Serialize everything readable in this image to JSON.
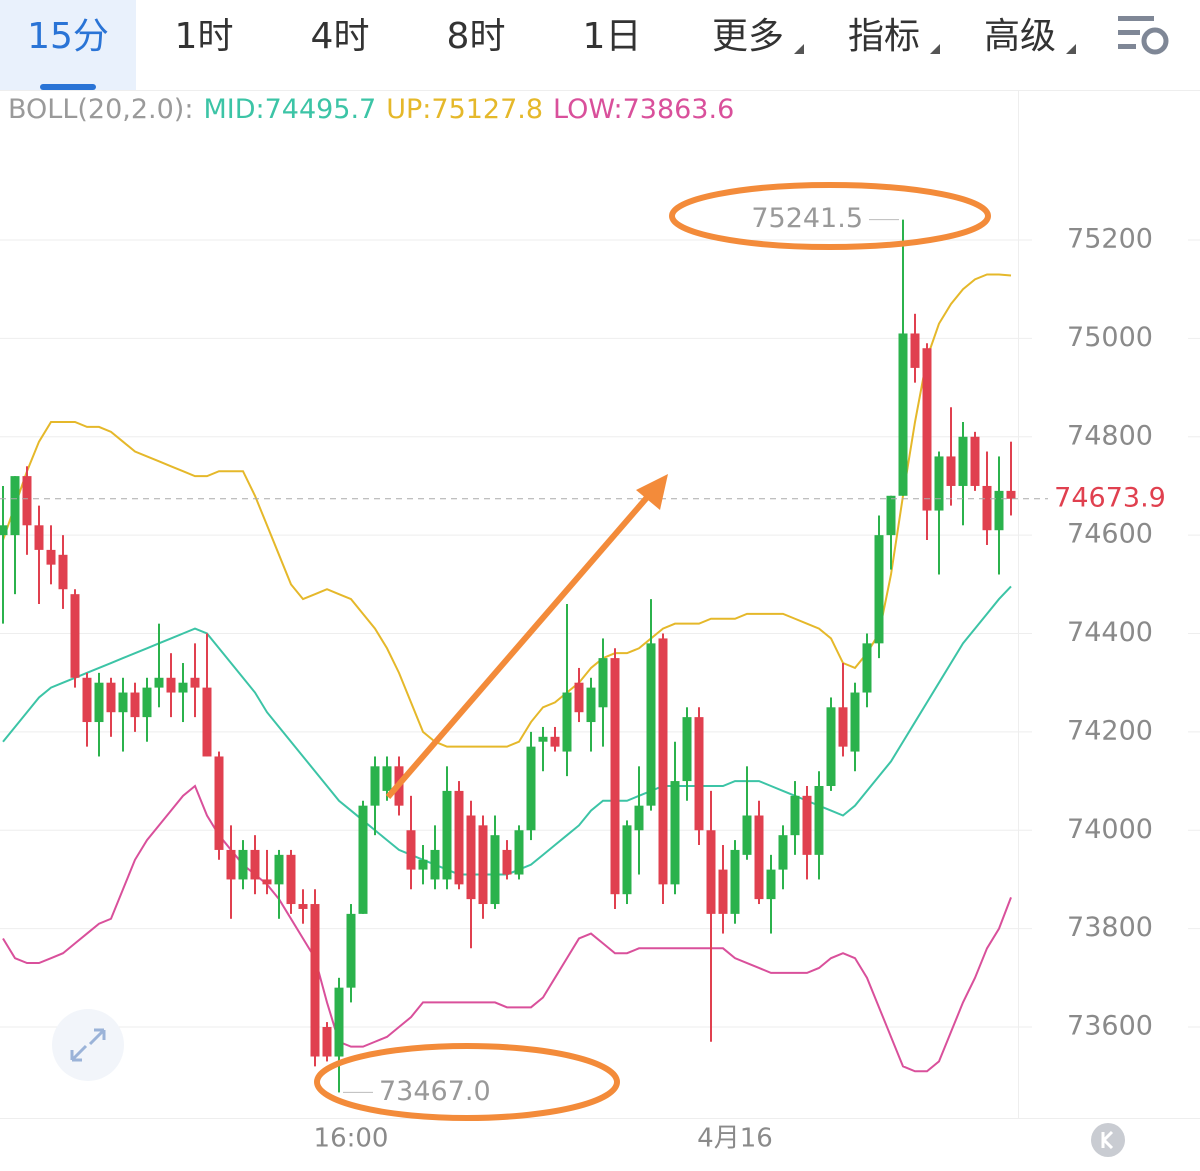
{
  "tabs": [
    "15分",
    "1时",
    "4时",
    "8时",
    "1日",
    "更多",
    "指标",
    "高级"
  ],
  "indicator": {
    "label": "BOLL(20,2.0):"
  },
  "chart_data": {
    "type": "candlestick",
    "up_color": "#2bb24c",
    "down_color": "#e0404f",
    "ylim": [
      73415,
      75505
    ],
    "yticks": [
      73600,
      73800,
      74000,
      74200,
      74400,
      74600,
      74800,
      75000,
      75200
    ],
    "grid": true,
    "low_label": "73467.0",
    "categories": [
      null,
      null,
      null,
      null,
      null,
      null,
      null,
      null,
      null,
      null,
      null,
      null,
      null,
      null,
      null,
      null,
      null,
      null,
      null,
      null,
      null,
      null,
      null,
      null,
      null,
      null,
      null,
      null,
      null,
      "16:00",
      null,
      null,
      null,
      null,
      null,
      null,
      null,
      null,
      null,
      null,
      null,
      null,
      null,
      null,
      null,
      null,
      null,
      null,
      null,
      null,
      null,
      null,
      null,
      null,
      null,
      null,
      null,
      null,
      null,
      null,
      null,
      "4月16",
      null,
      null,
      null,
      null,
      null,
      null,
      null,
      null,
      null,
      null,
      null,
      null,
      null,
      null,
      null,
      null,
      null,
      null,
      null,
      null,
      null,
      null,
      null
    ],
    "ohlc": [
      [
        74600,
        74700,
        74420,
        74620
      ],
      [
        74600,
        74720,
        74480,
        74720
      ],
      [
        74720,
        74740,
        74560,
        74620
      ],
      [
        74620,
        74660,
        74460,
        74570
      ],
      [
        74570,
        74620,
        74500,
        74540
      ],
      [
        74560,
        74600,
        74450,
        74490
      ],
      [
        74480,
        74490,
        74290,
        74310
      ],
      [
        74310,
        74320,
        74170,
        74220
      ],
      [
        74220,
        74320,
        74150,
        74300
      ],
      [
        74300,
        74310,
        74190,
        74240
      ],
      [
        74240,
        74310,
        74160,
        74280
      ],
      [
        74280,
        74300,
        74200,
        74230
      ],
      [
        74230,
        74310,
        74180,
        74290
      ],
      [
        74290,
        74420,
        74250,
        74310
      ],
      [
        74310,
        74360,
        74230,
        74280
      ],
      [
        74280,
        74340,
        74220,
        74300
      ],
      [
        74310,
        74380,
        74230,
        74290
      ],
      [
        74290,
        74400,
        74150,
        74150
      ],
      [
        74150,
        74160,
        73940,
        73960
      ],
      [
        73960,
        74010,
        73820,
        73900
      ],
      [
        73900,
        73980,
        73880,
        73960
      ],
      [
        73960,
        73990,
        73870,
        73900
      ],
      [
        73900,
        73960,
        73870,
        73890
      ],
      [
        73890,
        73960,
        73820,
        73950
      ],
      [
        73950,
        73960,
        73830,
        73850
      ],
      [
        73850,
        73880,
        73810,
        73840
      ],
      [
        73850,
        73880,
        73520,
        73540
      ],
      [
        73600,
        73610,
        73530,
        73540
      ],
      [
        73540,
        73700,
        73467,
        73680
      ],
      [
        73680,
        73850,
        73650,
        73830
      ],
      [
        73830,
        74060,
        73830,
        74050
      ],
      [
        74050,
        74150,
        73990,
        74130
      ],
      [
        74080,
        74150,
        74060,
        74130
      ],
      [
        74130,
        74150,
        74030,
        74050
      ],
      [
        74000,
        74070,
        73880,
        73920
      ],
      [
        73920,
        73970,
        73890,
        73940
      ],
      [
        73900,
        74010,
        73880,
        73960
      ],
      [
        73900,
        74130,
        73880,
        74080
      ],
      [
        74080,
        74100,
        73880,
        73890
      ],
      [
        74030,
        74060,
        73760,
        73860
      ],
      [
        74010,
        74030,
        73820,
        73850
      ],
      [
        73850,
        74030,
        73840,
        73990
      ],
      [
        73960,
        73980,
        73900,
        73910
      ],
      [
        73910,
        74010,
        73900,
        74000
      ],
      [
        74000,
        74200,
        73980,
        74170
      ],
      [
        74180,
        74210,
        74120,
        74190
      ],
      [
        74190,
        74210,
        74160,
        74170
      ],
      [
        74160,
        74460,
        74110,
        74280
      ],
      [
        74300,
        74330,
        74220,
        74240
      ],
      [
        74220,
        74310,
        74160,
        74290
      ],
      [
        74250,
        74390,
        74170,
        74350
      ],
      [
        74350,
        74370,
        73840,
        73870
      ],
      [
        73870,
        74020,
        73850,
        74010
      ],
      [
        74000,
        74130,
        73910,
        74050
      ],
      [
        74050,
        74470,
        74040,
        74380
      ],
      [
        74390,
        74400,
        73850,
        73890
      ],
      [
        73890,
        74180,
        73870,
        74100
      ],
      [
        74100,
        74250,
        74060,
        74230
      ],
      [
        74230,
        74250,
        73970,
        74000
      ],
      [
        74000,
        74080,
        73570,
        73830
      ],
      [
        73920,
        73970,
        73790,
        73830
      ],
      [
        73830,
        73980,
        73810,
        73960
      ],
      [
        73950,
        74130,
        73940,
        74030
      ],
      [
        74030,
        74060,
        73850,
        73860
      ],
      [
        73860,
        73950,
        73790,
        73920
      ],
      [
        73920,
        74010,
        73880,
        73990
      ],
      [
        73990,
        74100,
        73950,
        74070
      ],
      [
        74070,
        74090,
        73900,
        73950
      ],
      [
        73950,
        74120,
        73900,
        74090
      ],
      [
        74090,
        74270,
        74080,
        74250
      ],
      [
        74250,
        74340,
        74150,
        74170
      ],
      [
        74160,
        74300,
        74120,
        74280
      ],
      [
        74280,
        74400,
        74250,
        74380
      ],
      [
        74380,
        74640,
        74350,
        74600
      ],
      [
        74600,
        74680,
        74530,
        74680
      ],
      [
        74680,
        75241.5,
        74680,
        75010
      ],
      [
        75010,
        75050,
        74910,
        74940
      ],
      [
        74980,
        74990,
        74590,
        74650
      ],
      [
        74650,
        74770,
        74520,
        74760
      ],
      [
        74760,
        74860,
        74660,
        74700
      ],
      [
        74700,
        74830,
        74620,
        74800
      ],
      [
        74800,
        74810,
        74690,
        74700
      ],
      [
        74700,
        74770,
        74580,
        74610
      ],
      [
        74610,
        74760,
        74520,
        74690
      ],
      [
        74690,
        74790,
        74640,
        74673.9
      ]
    ],
    "series": [
      {
        "name": "MID:74495.7",
        "color": "#3cc4a6",
        "values": [
          74180,
          74210,
          74240,
          74270,
          74290,
          74300,
          74310,
          74320,
          74330,
          74340,
          74350,
          74360,
          74370,
          74380,
          74390,
          74400,
          74410,
          74400,
          74370,
          74340,
          74310,
          74280,
          74240,
          74210,
          74180,
          74150,
          74120,
          74090,
          74060,
          74040,
          74020,
          74000,
          73980,
          73960,
          73950,
          73940,
          73930,
          73920,
          73910,
          73910,
          73910,
          73910,
          73910,
          73920,
          73930,
          73950,
          73970,
          73990,
          74010,
          74040,
          74060,
          74060,
          74060,
          74070,
          74080,
          74090,
          74090,
          74090,
          74090,
          74090,
          74090,
          74100,
          74100,
          74100,
          74090,
          74080,
          74070,
          74060,
          74050,
          74040,
          74030,
          74050,
          74080,
          74110,
          74140,
          74180,
          74220,
          74260,
          74300,
          74340,
          74380,
          74410,
          74440,
          74470,
          74495.7
        ]
      },
      {
        "name": "UP:75127.8",
        "color": "#e5b82a",
        "values": [
          74590,
          74660,
          74730,
          74790,
          74830,
          74830,
          74830,
          74820,
          74820,
          74810,
          74790,
          74770,
          74760,
          74750,
          74740,
          74730,
          74720,
          74720,
          74730,
          74730,
          74730,
          74680,
          74620,
          74560,
          74500,
          74470,
          74480,
          74490,
          74480,
          74470,
          74440,
          74410,
          74370,
          74320,
          74260,
          74200,
          74180,
          74170,
          74170,
          74170,
          74170,
          74170,
          74170,
          74180,
          74220,
          74250,
          74260,
          74280,
          74300,
          74330,
          74350,
          74360,
          74360,
          74370,
          74390,
          74410,
          74420,
          74420,
          74420,
          74430,
          74430,
          74430,
          74440,
          74440,
          74440,
          74440,
          74430,
          74420,
          74410,
          74390,
          74340,
          74330,
          74360,
          74400,
          74520,
          74680,
          74830,
          74960,
          75030,
          75070,
          75100,
          75120,
          75130,
          75130,
          75127.8
        ]
      },
      {
        "name": "LOW:73863.6",
        "color": "#d9509b",
        "values": [
          73780,
          73740,
          73730,
          73730,
          73740,
          73750,
          73770,
          73790,
          73810,
          73820,
          73880,
          73940,
          73980,
          74010,
          74040,
          74070,
          74090,
          74030,
          73990,
          73960,
          73930,
          73910,
          73890,
          73860,
          73820,
          73780,
          73740,
          73650,
          73570,
          73560,
          73560,
          73570,
          73580,
          73600,
          73620,
          73650,
          73650,
          73650,
          73650,
          73650,
          73650,
          73650,
          73640,
          73640,
          73640,
          73660,
          73700,
          73740,
          73780,
          73790,
          73770,
          73750,
          73750,
          73760,
          73760,
          73760,
          73760,
          73760,
          73760,
          73760,
          73760,
          73740,
          73730,
          73720,
          73710,
          73710,
          73710,
          73710,
          73720,
          73740,
          73750,
          73740,
          73700,
          73640,
          73580,
          73520,
          73510,
          73510,
          73530,
          73590,
          73650,
          73700,
          73760,
          73800,
          73863.6
        ]
      }
    ]
  }
}
